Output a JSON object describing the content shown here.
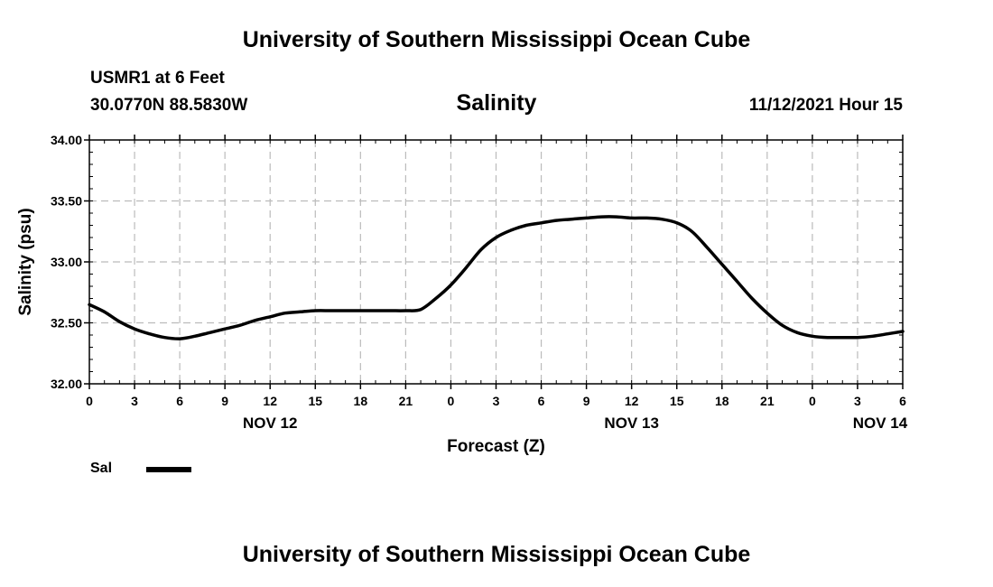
{
  "header": {
    "title": "University of Southern Mississippi Ocean Cube",
    "station": "USMR1 at 6 Feet",
    "coords": "30.0770N  88.5830W",
    "variable": "Salinity",
    "datetime": "11/12/2021 Hour 15"
  },
  "footer": {
    "title": "University of Southern Mississippi Ocean Cube"
  },
  "chart_data": {
    "type": "line",
    "title": "Salinity",
    "xlabel": "Forecast (Z)",
    "ylabel": "Salinity (psu)",
    "ylim": [
      32.0,
      34.0
    ],
    "xlim": [
      0,
      54
    ],
    "x_unit": "hours since NOV 12 00Z",
    "grid": true,
    "y_ticks": [
      "32.00",
      "32.50",
      "33.00",
      "33.50",
      "34.00"
    ],
    "x_tick_labels": [
      "0",
      "3",
      "6",
      "9",
      "12",
      "15",
      "18",
      "21",
      "0",
      "3",
      "6",
      "9",
      "12",
      "15",
      "18",
      "21",
      "0",
      "3",
      "6"
    ],
    "date_labels": [
      {
        "label": "NOV 12",
        "at_hour": 12
      },
      {
        "label": "NOV 13",
        "at_hour": 36
      },
      {
        "label": "NOV 14",
        "at_hour": 52.5
      }
    ],
    "legend": {
      "label": "Sal",
      "position": "bottom-left"
    },
    "series": [
      {
        "name": "Sal",
        "color": "#000000",
        "x": [
          0,
          1,
          2,
          3,
          4,
          5,
          6,
          7,
          8,
          9,
          10,
          11,
          12,
          13,
          14,
          15,
          16,
          17,
          18,
          19,
          20,
          21,
          22,
          23,
          24,
          25,
          26,
          27,
          28,
          29,
          30,
          31,
          32,
          33,
          34,
          35,
          36,
          37,
          38,
          39,
          40,
          41,
          42,
          43,
          44,
          45,
          46,
          47,
          48,
          49,
          50,
          51,
          52,
          53,
          54
        ],
        "values": [
          32.65,
          32.59,
          32.51,
          32.45,
          32.41,
          32.38,
          32.37,
          32.39,
          32.42,
          32.45,
          32.48,
          32.52,
          32.55,
          32.58,
          32.59,
          32.6,
          32.6,
          32.6,
          32.6,
          32.6,
          32.6,
          32.6,
          32.61,
          32.7,
          32.81,
          32.95,
          33.1,
          33.2,
          33.26,
          33.3,
          33.32,
          33.34,
          33.35,
          33.36,
          33.37,
          33.37,
          33.36,
          33.36,
          33.35,
          33.32,
          33.25,
          33.12,
          32.98,
          32.84,
          32.7,
          32.58,
          32.48,
          32.42,
          32.39,
          32.38,
          32.38,
          32.38,
          32.39,
          32.41,
          32.43
        ]
      }
    ]
  }
}
